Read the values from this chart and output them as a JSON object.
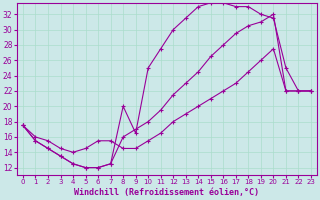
{
  "background_color": "#cce8e8",
  "line_color": "#990099",
  "marker": "+",
  "markersize": 3,
  "linewidth": 0.8,
  "xlabel": "Windchill (Refroidissement éolien,°C)",
  "xlabel_fontsize": 6,
  "xlabel_color": "#990099",
  "ylabel_ticks": [
    12,
    14,
    16,
    18,
    20,
    22,
    24,
    26,
    28,
    30,
    32
  ],
  "xtick_labels": [
    "0",
    "1",
    "2",
    "3",
    "4",
    "5",
    "6",
    "7",
    "8",
    "9",
    "10",
    "11",
    "12",
    "13",
    "14",
    "15",
    "16",
    "17",
    "18",
    "19",
    "20",
    "21",
    "22",
    "23"
  ],
  "xlim": [
    -0.5,
    23.5
  ],
  "ylim": [
    11.0,
    33.5
  ],
  "tick_fontsize": 5.5,
  "tick_color": "#990099",
  "grid_color": "#aaddcc",
  "line1_x": [
    0,
    1,
    2,
    3,
    4,
    5,
    6,
    7,
    8,
    9,
    10,
    11,
    12,
    13,
    14,
    15,
    16,
    17,
    18,
    19,
    20,
    21,
    22,
    23
  ],
  "line1_y": [
    17.5,
    15.5,
    14.5,
    13.5,
    12.5,
    12.0,
    12.0,
    12.5,
    20.0,
    16.5,
    25.0,
    27.5,
    30.0,
    31.5,
    33.0,
    33.5,
    33.5,
    33.0,
    33.0,
    32.0,
    31.5,
    25.0,
    22.0,
    22.0
  ],
  "line2_x": [
    0,
    1,
    2,
    3,
    4,
    5,
    6,
    7,
    8,
    9,
    10,
    11,
    12,
    13,
    14,
    15,
    16,
    17,
    18,
    19,
    20,
    21,
    22,
    23
  ],
  "line2_y": [
    17.5,
    15.5,
    14.5,
    13.5,
    12.5,
    12.0,
    12.0,
    12.5,
    16.0,
    17.0,
    18.0,
    19.5,
    21.5,
    23.0,
    24.5,
    26.5,
    28.0,
    29.5,
    30.5,
    31.0,
    32.0,
    22.0,
    22.0,
    22.0
  ],
  "line3_x": [
    0,
    1,
    2,
    3,
    4,
    5,
    6,
    7,
    8,
    9,
    10,
    11,
    12,
    13,
    14,
    15,
    16,
    17,
    18,
    19,
    20,
    21,
    22,
    23
  ],
  "line3_y": [
    17.5,
    16.0,
    15.5,
    14.5,
    14.0,
    14.5,
    15.5,
    15.5,
    14.5,
    14.5,
    15.5,
    16.5,
    18.0,
    19.0,
    20.0,
    21.0,
    22.0,
    23.0,
    24.5,
    26.0,
    27.5,
    22.0,
    22.0,
    22.0
  ]
}
